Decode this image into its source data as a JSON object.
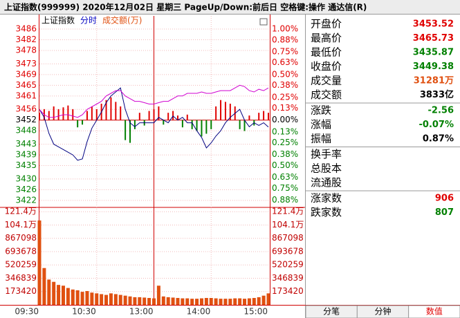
{
  "window_title": "上证指数(999999)  2020年12月02日  星期三  PageUp/Down:前后日  空格键:操作  通达信(R)",
  "chart_data": [
    {
      "type": "line",
      "header": [
        {
          "text": "上证指数",
          "color": "#000000"
        },
        {
          "text": "分时",
          "color": "#0000c0"
        },
        {
          "text": "成交额(万)",
          "color": "#e05010"
        }
      ],
      "x": [
        "09:30",
        "09:35",
        "09:40",
        "09:45",
        "09:50",
        "09:55",
        "10:00",
        "10:05",
        "10:10",
        "10:15",
        "10:20",
        "10:25",
        "10:30",
        "10:35",
        "10:40",
        "10:45",
        "10:50",
        "10:55",
        "11:00",
        "11:05",
        "11:10",
        "11:15",
        "11:20",
        "11:25",
        "11:30",
        "13:05",
        "13:10",
        "13:15",
        "13:20",
        "13:25",
        "13:30",
        "13:35",
        "13:40",
        "13:45",
        "13:50",
        "13:55",
        "14:00",
        "14:05",
        "14:10",
        "14:15",
        "14:20",
        "14:25",
        "14:30",
        "14:35",
        "14:40",
        "14:45",
        "14:50",
        "14:55",
        "15:00"
      ],
      "series": [
        {
          "color": "#000080",
          "values": [
            3456,
            3453,
            3447,
            3443,
            3442,
            3441,
            3440,
            3439,
            3437,
            3437.5,
            3444,
            3449,
            3452,
            3455,
            3458.5,
            3461,
            3462.5,
            3464,
            3456,
            3451,
            3449.5,
            3451,
            3451,
            3451,
            3451,
            3453,
            3452,
            3451,
            3453.5,
            3452,
            3453,
            3451,
            3451,
            3448,
            3445.5,
            3441.6,
            3443.5,
            3446,
            3448,
            3451,
            3453,
            3454.5,
            3456,
            3452,
            3449.5,
            3451,
            3450,
            3451,
            3449.4
          ]
        },
        {
          "color": "#d000d0",
          "values": [
            3456,
            3454,
            3453,
            3453,
            3453.5,
            3454,
            3454,
            3453.5,
            3453,
            3454,
            3456,
            3457,
            3458,
            3459,
            3461,
            3462,
            3463,
            3463,
            3461,
            3460,
            3459,
            3459,
            3458.5,
            3458,
            3458,
            3458.5,
            3459,
            3459,
            3460,
            3461,
            3461,
            3462,
            3462,
            3462,
            3462.5,
            3462,
            3462,
            3462.5,
            3463,
            3463,
            3463,
            3464,
            3465,
            3464.5,
            3463,
            3462.5,
            3463.5,
            3463,
            3464
          ]
        }
      ],
      "strength": {
        "axis": "y2",
        "colors": [
          "#e00000",
          "#008000"
        ],
        "values": [
          0.08,
          0.12,
          0.1,
          0.15,
          0.12,
          0.14,
          0.16,
          0.12,
          -0.08,
          -0.05,
          0.1,
          0.15,
          0.12,
          0.18,
          0.22,
          0.25,
          0.2,
          0.15,
          -0.22,
          -0.25,
          -0.1,
          0.08,
          -0.06,
          0.1,
          0.12,
          0.15,
          -0.05,
          0.08,
          0.1,
          0.05,
          -0.08,
          0.06,
          -0.1,
          -0.12,
          -0.18,
          -0.15,
          -0.1,
          0.15,
          0.22,
          0.2,
          0.18,
          0.15,
          -0.1,
          -0.12,
          0.05,
          -0.06,
          0.08,
          0.1,
          0.08
        ]
      },
      "ylim": [
        3419.4,
        3487.8
      ],
      "yticks": [
        3486,
        3482,
        3478,
        3473,
        3469,
        3465,
        3461,
        3456,
        3452,
        3448,
        3443,
        3439,
        3435,
        3430,
        3426,
        3422
      ],
      "y2lim": [
        -0.959,
        1.053
      ],
      "y2ticks": [
        {
          "value": 1,
          "label": "1.00%"
        },
        {
          "value": 0.88,
          "label": "0.88%"
        },
        {
          "value": 0.75,
          "label": "0.75%"
        },
        {
          "value": 0.63,
          "label": "0.63%"
        },
        {
          "value": 0.5,
          "label": "0.50%"
        },
        {
          "value": 0.38,
          "label": "0.38%"
        },
        {
          "value": 0.25,
          "label": "0.25%"
        },
        {
          "value": 0.13,
          "label": "0.13%"
        },
        {
          "value": 0,
          "label": "0.00%"
        },
        {
          "value": -0.13,
          "label": "0.13%"
        },
        {
          "value": -0.25,
          "label": "0.25%"
        },
        {
          "value": -0.38,
          "label": "0.38%"
        },
        {
          "value": -0.5,
          "label": "0.50%"
        },
        {
          "value": -0.63,
          "label": "0.63%"
        },
        {
          "value": -0.75,
          "label": "0.75%"
        },
        {
          "value": -0.88,
          "label": "0.88%"
        }
      ],
      "grid": true
    },
    {
      "type": "bar",
      "x": [
        "09:30",
        "09:35",
        "09:40",
        "09:45",
        "09:50",
        "09:55",
        "10:00",
        "10:05",
        "10:10",
        "10:15",
        "10:20",
        "10:25",
        "10:30",
        "10:35",
        "10:40",
        "10:45",
        "10:50",
        "10:55",
        "11:00",
        "11:05",
        "11:10",
        "11:15",
        "11:20",
        "11:25",
        "11:30",
        "13:05",
        "13:10",
        "13:15",
        "13:20",
        "13:25",
        "13:30",
        "13:35",
        "13:40",
        "13:45",
        "13:50",
        "13:55",
        "14:00",
        "14:05",
        "14:10",
        "14:15",
        "14:20",
        "14:25",
        "14:30",
        "14:35",
        "14:40",
        "14:45",
        "14:50",
        "14:55",
        "15:00"
      ],
      "series": [
        {
          "color": "#e05010",
          "values": [
            1100000,
            480000,
            330000,
            300000,
            260000,
            250000,
            220000,
            200000,
            190000,
            170000,
            180000,
            160000,
            150000,
            140000,
            130000,
            150000,
            140000,
            130000,
            120000,
            110000,
            100000,
            100000,
            95000,
            90000,
            85000,
            250000,
            110000,
            100000,
            95000,
            90000,
            85000,
            85000,
            80000,
            80000,
            85000,
            90000,
            90000,
            85000,
            80000,
            80000,
            80000,
            85000,
            85000,
            80000,
            85000,
            90000,
            100000,
            120000,
            150000
          ]
        }
      ],
      "ylim": [
        0,
        1270000
      ],
      "yticks": [
        {
          "value": 1213940,
          "label": "121.4万"
        },
        {
          "value": 1040520,
          "label": "104.1万"
        },
        867098,
        693678,
        520259,
        346839,
        173420
      ],
      "xticks": [
        "09:30",
        "10:30",
        "13:00",
        "14:00",
        "15:00"
      ],
      "grid": true
    }
  ],
  "quote": [
    [
      {
        "label": "开盘价",
        "value": "3453.52",
        "color": "#e00000"
      },
      {
        "label": "最高价",
        "value": "3465.73",
        "color": "#e00000"
      },
      {
        "label": "最低价",
        "value": "3435.87",
        "color": "#008000"
      },
      {
        "label": "收盘价",
        "value": "3449.38",
        "color": "#008000"
      },
      {
        "label": "成交量",
        "value": "31281万",
        "color": "#e05010"
      },
      {
        "label": "成交额",
        "value": "3833亿",
        "color": "#000000"
      }
    ],
    [
      {
        "label": "涨跌",
        "value": "-2.56",
        "color": "#008000"
      },
      {
        "label": "涨幅",
        "value": "-0.07%",
        "color": "#008000"
      },
      {
        "label": "振幅",
        "value": "0.87%",
        "color": "#000000"
      }
    ],
    [
      {
        "label": "换手率"
      },
      {
        "label": "总股本"
      },
      {
        "label": "流通股"
      }
    ],
    [
      {
        "label": "涨家数",
        "value": "906",
        "color": "#e00000"
      },
      {
        "label": "跌家数",
        "value": "807",
        "color": "#008000"
      }
    ]
  ],
  "tabs": [
    "分笔",
    "分钟",
    "数值"
  ]
}
